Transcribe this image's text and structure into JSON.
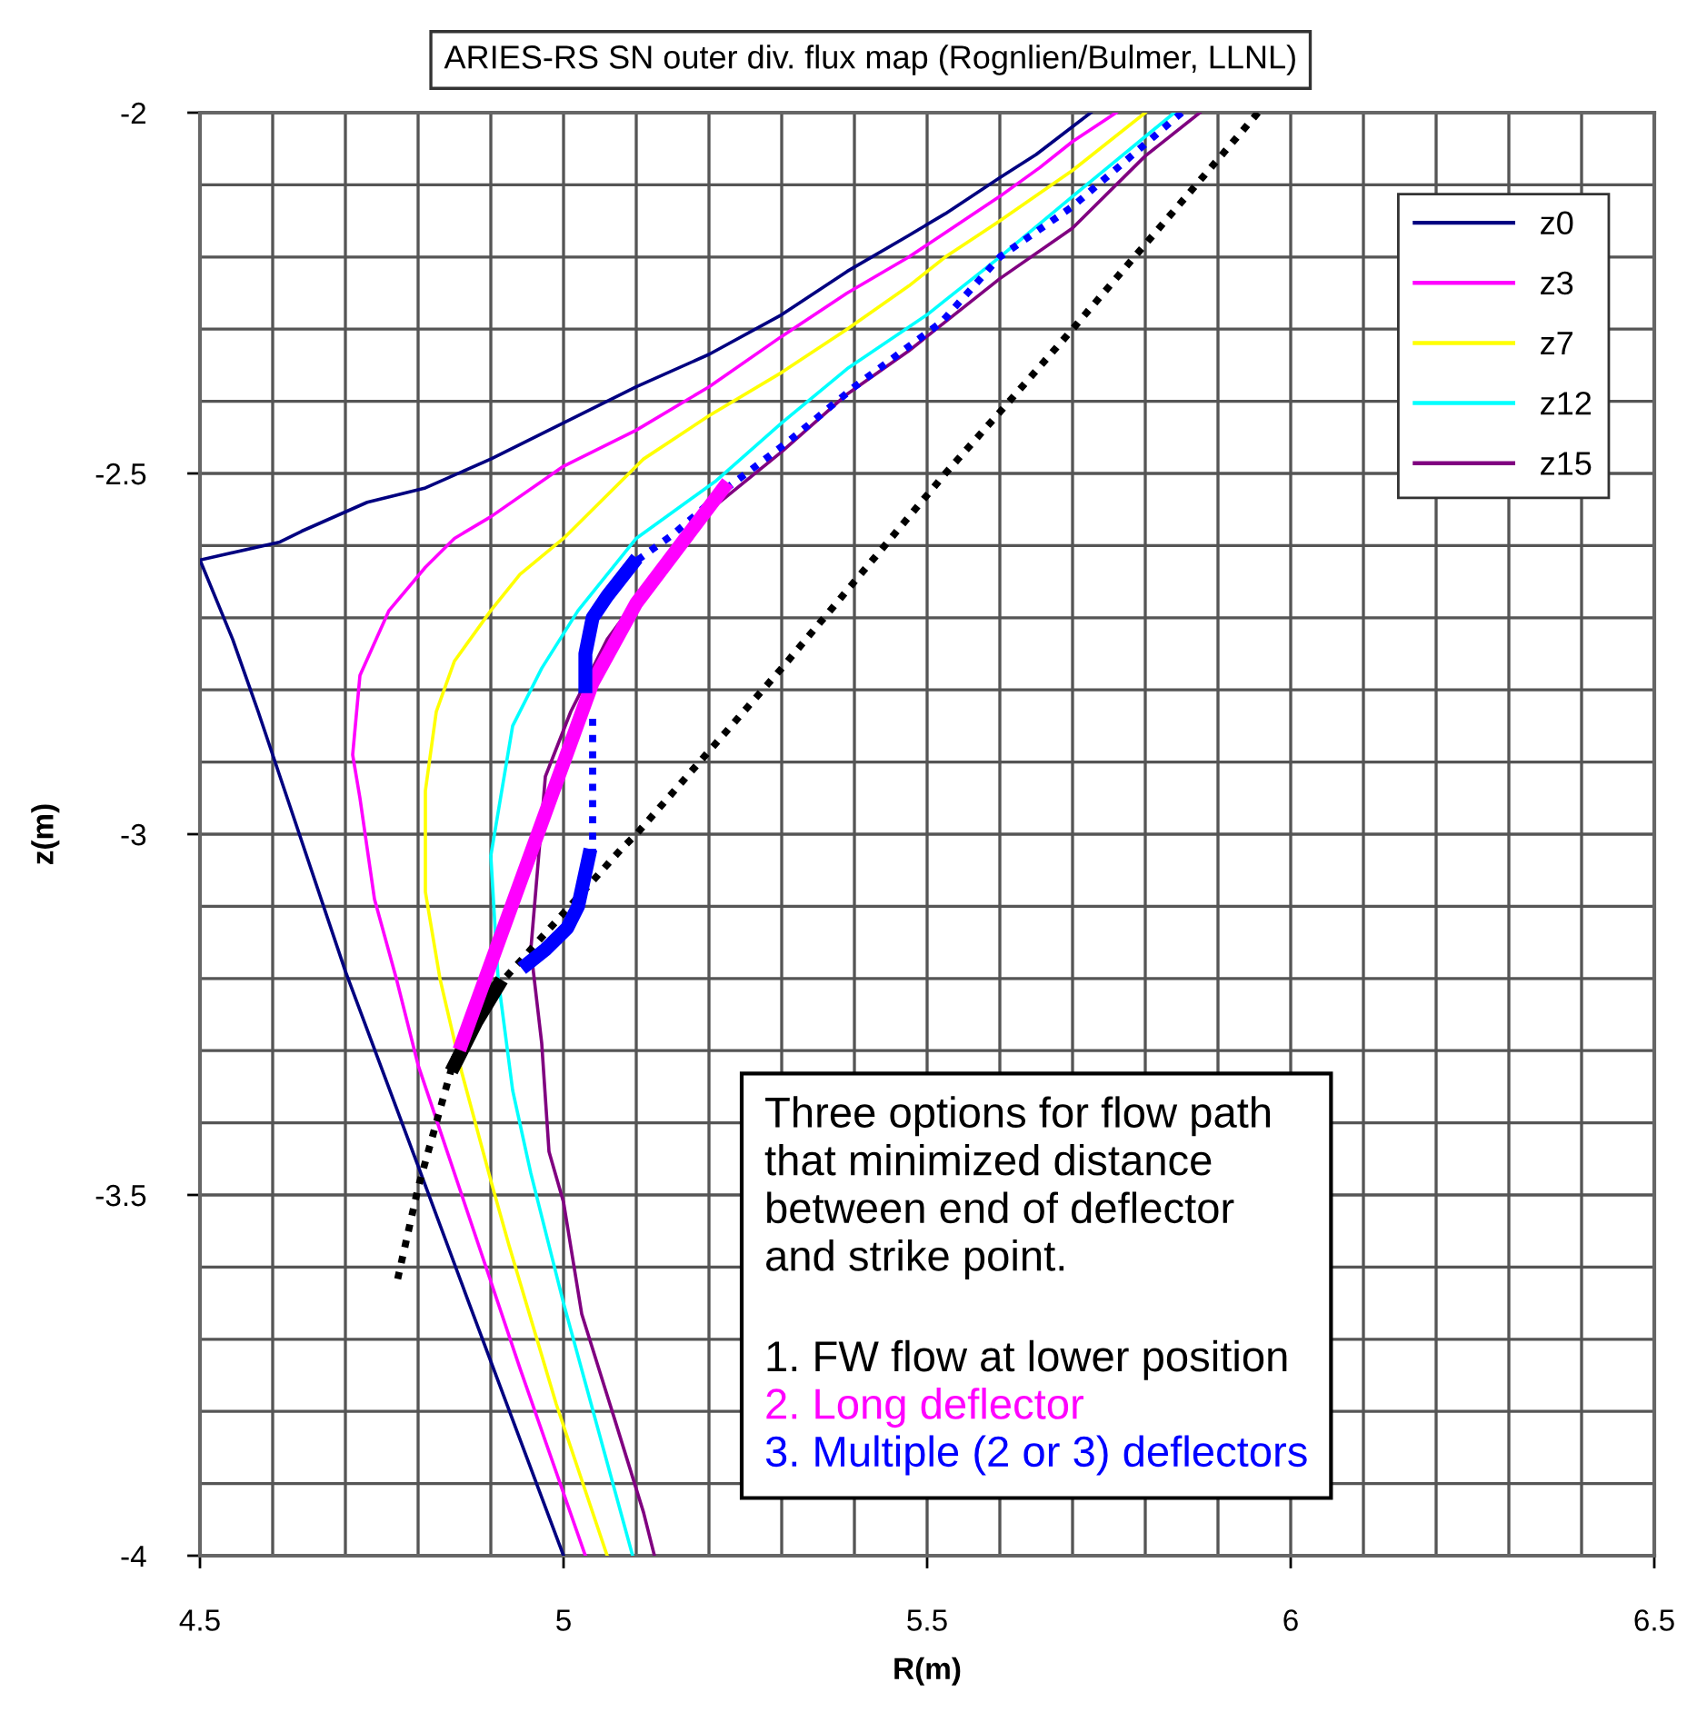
{
  "chart_data": {
    "type": "line",
    "title": "ARIES-RS SN outer div. flux map (Rognlien/Bulmer, LLNL)",
    "xlabel": "R(m)",
    "ylabel": "z(m)",
    "xlim": [
      4.5,
      6.5
    ],
    "ylim": [
      -4,
      -2
    ],
    "xticks": [
      4.5,
      {
        "value": 4.6,
        "label": null
      },
      {
        "value": 4.7,
        "label": null
      },
      {
        "value": 4.8,
        "label": null
      },
      {
        "value": 4.9,
        "label": null
      },
      5,
      {
        "value": 5.1,
        "label": null
      },
      {
        "value": 5.2,
        "label": null
      },
      {
        "value": 5.3,
        "label": null
      },
      {
        "value": 5.4,
        "label": null
      },
      5.5,
      {
        "value": 5.6,
        "label": null
      },
      {
        "value": 5.7,
        "label": null
      },
      {
        "value": 5.8,
        "label": null
      },
      {
        "value": 5.9,
        "label": null
      },
      6,
      {
        "value": 6.1,
        "label": null
      },
      {
        "value": 6.2,
        "label": null
      },
      {
        "value": 6.3,
        "label": null
      },
      {
        "value": 6.4,
        "label": null
      },
      6.5
    ],
    "yticks": [
      -4,
      {
        "value": -3.9,
        "label": null
      },
      {
        "value": -3.8,
        "label": null
      },
      {
        "value": -3.7,
        "label": null
      },
      {
        "value": -3.6,
        "label": null
      },
      -3.5,
      {
        "value": -3.4,
        "label": null
      },
      {
        "value": -3.3,
        "label": null
      },
      {
        "value": -3.2,
        "label": null
      },
      {
        "value": -3.1,
        "label": null
      },
      -3,
      {
        "value": -2.9,
        "label": null
      },
      {
        "value": -2.8,
        "label": null
      },
      {
        "value": -2.7,
        "label": null
      },
      {
        "value": -2.6,
        "label": null
      },
      -2.5,
      {
        "value": -2.4,
        "label": null
      },
      {
        "value": -2.3,
        "label": null
      },
      {
        "value": -2.2,
        "label": null
      },
      {
        "value": -2.1,
        "label": null
      },
      -2
    ],
    "grid": true,
    "legend": "top right",
    "marker": "none",
    "series": [
      {
        "name": "z0",
        "color": "#000080",
        "line_style": "solid",
        "x": [
          5.725,
          5.65,
          5.6,
          5.525,
          5.475,
          5.39,
          5.3,
          5.2,
          5.1,
          5.0,
          4.9,
          4.81,
          4.73,
          4.64,
          4.61,
          4.5,
          4.545,
          4.58,
          4.62,
          4.7,
          4.8,
          4.87,
          5.0
        ],
        "values": [
          -2.0,
          -2.058,
          -2.09,
          -2.14,
          -2.17,
          -2.22,
          -2.28,
          -2.335,
          -2.38,
          -2.43,
          -2.48,
          -2.52,
          -2.54,
          -2.58,
          -2.595,
          -2.62,
          -2.73,
          -2.83,
          -2.95,
          -3.19,
          -3.46,
          -3.65,
          -4.0
        ]
      },
      {
        "name": "z3",
        "color": "#ff00ff",
        "line_style": "solid",
        "x": [
          5.76,
          5.7,
          5.655,
          5.6,
          5.475,
          5.39,
          5.3,
          5.2,
          5.1,
          5.0,
          4.9,
          4.85,
          4.81,
          4.76,
          4.72,
          4.71,
          4.72,
          4.74,
          4.77,
          4.8,
          4.86,
          4.9,
          4.94,
          5.03
        ],
        "values": [
          -2.0,
          -2.04,
          -2.076,
          -2.116,
          -2.2,
          -2.25,
          -2.31,
          -2.38,
          -2.44,
          -2.49,
          -2.56,
          -2.59,
          -2.63,
          -2.69,
          -2.78,
          -2.89,
          -2.95,
          -3.09,
          -3.2,
          -3.32,
          -3.5,
          -3.62,
          -3.74,
          -4.0
        ]
      },
      {
        "name": "z7",
        "color": "#ffff00",
        "line_style": "solid",
        "x": [
          5.8,
          5.7,
          5.6,
          5.525,
          5.475,
          5.39,
          5.3,
          5.2,
          5.11,
          5.0,
          4.94,
          4.9,
          4.85,
          4.825,
          4.81,
          4.81,
          4.83,
          4.86,
          4.9,
          4.925,
          4.99,
          5.06
        ],
        "values": [
          -2.0,
          -2.08,
          -2.15,
          -2.2,
          -2.24,
          -2.3,
          -2.36,
          -2.42,
          -2.48,
          -2.59,
          -2.64,
          -2.69,
          -2.76,
          -2.83,
          -2.94,
          -3.08,
          -3.2,
          -3.33,
          -3.48,
          -3.57,
          -3.79,
          -4.0
        ]
      },
      {
        "name": "z12",
        "color": "#00ffff",
        "line_style": "solid",
        "x": [
          5.84,
          5.7,
          5.6,
          5.525,
          5.5,
          5.39,
          5.3,
          5.21,
          5.1,
          5.02,
          4.97,
          4.93,
          4.9,
          4.91,
          4.93,
          4.955,
          5.0,
          5.095
        ],
        "values": [
          -2.0,
          -2.116,
          -2.2,
          -2.26,
          -2.28,
          -2.355,
          -2.43,
          -2.51,
          -2.59,
          -2.69,
          -2.77,
          -2.85,
          -3.03,
          -3.2,
          -3.355,
          -3.47,
          -3.65,
          -4.0
        ]
      },
      {
        "name": "z15",
        "color": "#800080",
        "line_style": "solid",
        "x": [
          5.875,
          5.8,
          5.7,
          5.6,
          5.475,
          5.39,
          5.3,
          5.19,
          5.15,
          5.1,
          5.06,
          5.01,
          4.975,
          4.97,
          4.955,
          4.97,
          4.98,
          5.0,
          5.025,
          5.07,
          5.11,
          5.125
        ],
        "values": [
          -2.0,
          -2.06,
          -2.16,
          -2.23,
          -2.33,
          -2.39,
          -2.47,
          -2.56,
          -2.61,
          -2.675,
          -2.73,
          -2.83,
          -2.92,
          -2.98,
          -3.16,
          -3.29,
          -3.44,
          -3.51,
          -3.665,
          -3.81,
          -3.94,
          -4.0
        ]
      },
      {
        "color": "#000000",
        "line_style": "dotted",
        "x": [
          5.955,
          5.7,
          5.6,
          5.525,
          5.3,
          5.2,
          5.1,
          5.08,
          4.91,
          4.85,
          4.8,
          4.77
        ],
        "values": [
          -2.0,
          -2.3,
          -2.415,
          -2.5,
          -2.77,
          -2.885,
          -3.0,
          -3.02,
          -3.21,
          -3.31,
          -3.49,
          -3.625
        ]
      },
      {
        "color": "#0000ff",
        "line_style": "dotted",
        "x": [
          5.85,
          5.7,
          5.6,
          5.52,
          5.4,
          5.31,
          5.225,
          5.15,
          5.095
        ],
        "values": [
          -2.0,
          -2.13,
          -2.2,
          -2.29,
          -2.38,
          -2.455,
          -2.52,
          -2.585,
          -2.625
        ]
      },
      {
        "color": "#0000ff",
        "line_style": "dotted",
        "x": [
          5.04,
          5.04
        ],
        "values": [
          -2.84,
          -3.03
        ]
      },
      {
        "color": "#000000",
        "line_style": "solid",
        "x": [
          4.85,
          4.88,
          4.91
        ],
        "values": [
          -3.32,
          -3.26,
          -3.21
        ]
      },
      {
        "color": "#ff00ff",
        "line_style": "solid",
        "x": [
          4.86,
          5.04,
          5.1,
          5.16,
          5.22
        ],
        "values": [
          -3.29,
          -2.79,
          -2.68,
          -2.6,
          -2.52
        ]
      },
      {
        "color": "#0000ff",
        "line_style": "solid",
        "x": [
          5.095,
          5.06,
          5.04,
          5.03,
          5.03
        ],
        "values": [
          -2.625,
          -2.67,
          -2.7,
          -2.75,
          -2.795
        ]
      },
      {
        "color": "#0000ff",
        "line_style": "solid",
        "x": [
          5.035,
          5.02,
          5.005,
          4.975,
          4.95
        ],
        "values": [
          -3.03,
          -3.1,
          -3.13,
          -3.16,
          -3.18
        ]
      }
    ],
    "annotations": [
      "Three options for flow path\nthat minimized distance\nbetween end of deflector\nand strike point.",
      "1. FW flow at lower position",
      "2. Long deflector",
      "3. Multiple (2 or 3) deflectors"
    ]
  }
}
